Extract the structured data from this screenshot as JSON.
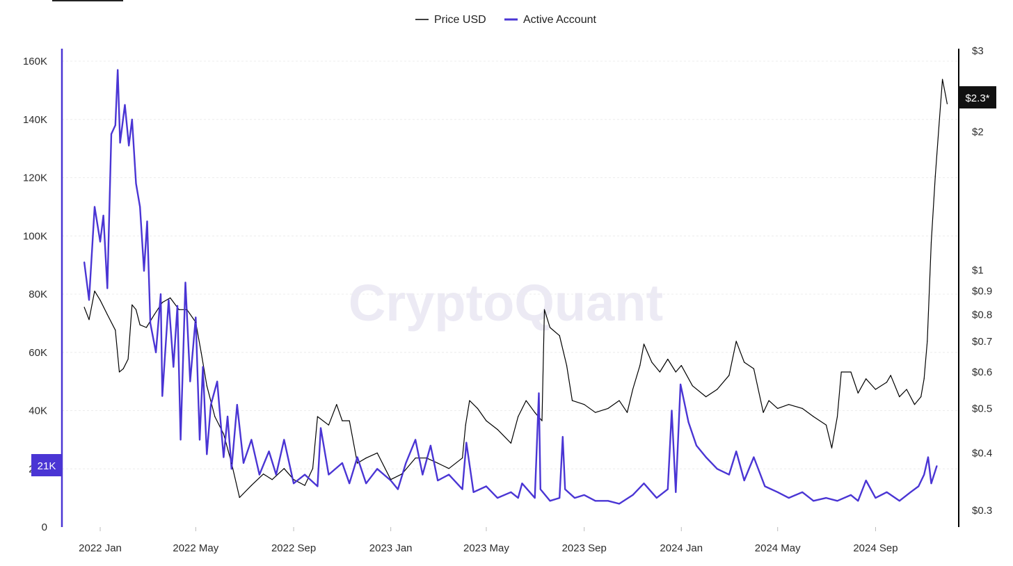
{
  "chart_data": {
    "type": "line",
    "watermark": "CryptoQuant",
    "legend": {
      "placement": "top-center"
    },
    "grid": true,
    "x": {
      "ticks": [
        "2022 Jan",
        "2022 May",
        "2022 Sep",
        "2023 Jan",
        "2023 May",
        "2023 Sep",
        "2024 Jan",
        "2024 May",
        "2024 Sep"
      ],
      "tick_dates": [
        "2022-01-01",
        "2022-05-01",
        "2022-09-01",
        "2023-01-01",
        "2023-05-01",
        "2023-09-01",
        "2024-01-01",
        "2024-05-01",
        "2024-09-01"
      ],
      "range": [
        "2021-12-11",
        "2024-12-04"
      ]
    },
    "y_left": {
      "ticks": [
        "0",
        "20K",
        "40K",
        "60K",
        "80K",
        "100K",
        "120K",
        "140K",
        "160K"
      ],
      "tick_values": [
        0,
        20000,
        40000,
        60000,
        80000,
        100000,
        120000,
        140000,
        160000
      ],
      "range": [
        0,
        160000
      ],
      "color": "#4a35d4",
      "current_badge": "21K"
    },
    "y_right": {
      "scale": "log",
      "ticks": [
        "$0.3",
        "$0.4",
        "$0.5",
        "$0.6",
        "$0.7",
        "$0.8",
        "$0.9",
        "$1",
        "$2",
        "$3"
      ],
      "tick_values": [
        0.3,
        0.4,
        0.5,
        0.6,
        0.7,
        0.8,
        0.9,
        1,
        2,
        3
      ],
      "range": [
        0.3,
        3
      ],
      "color": "#000000",
      "current_badge": "$2.3*",
      "current_value": 2.3
    },
    "series": [
      {
        "name": "Active Account",
        "axis": "left",
        "color": "#4a35d4",
        "points": [
          [
            "2021-12-12",
            91000
          ],
          [
            "2021-12-18",
            78000
          ],
          [
            "2021-12-25",
            110000
          ],
          [
            "2022-01-01",
            98000
          ],
          [
            "2022-01-05",
            107000
          ],
          [
            "2022-01-10",
            82000
          ],
          [
            "2022-01-15",
            135000
          ],
          [
            "2022-01-20",
            138000
          ],
          [
            "2022-01-23",
            157000
          ],
          [
            "2022-01-26",
            132000
          ],
          [
            "2022-02-01",
            145000
          ],
          [
            "2022-02-06",
            131000
          ],
          [
            "2022-02-10",
            140000
          ],
          [
            "2022-02-15",
            118000
          ],
          [
            "2022-02-20",
            110000
          ],
          [
            "2022-02-25",
            88000
          ],
          [
            "2022-03-01",
            105000
          ],
          [
            "2022-03-05",
            70000
          ],
          [
            "2022-03-12",
            60000
          ],
          [
            "2022-03-18",
            80000
          ],
          [
            "2022-03-20",
            45000
          ],
          [
            "2022-03-28",
            78000
          ],
          [
            "2022-04-03",
            55000
          ],
          [
            "2022-04-08",
            76000
          ],
          [
            "2022-04-12",
            30000
          ],
          [
            "2022-04-18",
            84000
          ],
          [
            "2022-04-24",
            50000
          ],
          [
            "2022-05-01",
            72000
          ],
          [
            "2022-05-06",
            30000
          ],
          [
            "2022-05-10",
            55000
          ],
          [
            "2022-05-15",
            25000
          ],
          [
            "2022-05-20",
            42000
          ],
          [
            "2022-05-28",
            50000
          ],
          [
            "2022-06-05",
            24000
          ],
          [
            "2022-06-10",
            38000
          ],
          [
            "2022-06-15",
            20000
          ],
          [
            "2022-06-22",
            42000
          ],
          [
            "2022-06-30",
            22000
          ],
          [
            "2022-07-10",
            30000
          ],
          [
            "2022-07-20",
            18000
          ],
          [
            "2022-08-01",
            26000
          ],
          [
            "2022-08-10",
            18000
          ],
          [
            "2022-08-20",
            30000
          ],
          [
            "2022-09-01",
            15000
          ],
          [
            "2022-09-15",
            18000
          ],
          [
            "2022-10-01",
            14000
          ],
          [
            "2022-10-05",
            34000
          ],
          [
            "2022-10-15",
            18000
          ],
          [
            "2022-11-01",
            22000
          ],
          [
            "2022-11-10",
            15000
          ],
          [
            "2022-11-20",
            24000
          ],
          [
            "2022-12-01",
            15000
          ],
          [
            "2022-12-15",
            20000
          ],
          [
            "2023-01-01",
            16000
          ],
          [
            "2023-01-10",
            13000
          ],
          [
            "2023-01-20",
            22000
          ],
          [
            "2023-02-01",
            30000
          ],
          [
            "2023-02-10",
            18000
          ],
          [
            "2023-02-20",
            28000
          ],
          [
            "2023-03-01",
            16000
          ],
          [
            "2023-03-15",
            18000
          ],
          [
            "2023-04-01",
            13000
          ],
          [
            "2023-04-06",
            29000
          ],
          [
            "2023-04-15",
            12000
          ],
          [
            "2023-05-01",
            14000
          ],
          [
            "2023-05-15",
            10000
          ],
          [
            "2023-06-01",
            12000
          ],
          [
            "2023-06-10",
            10000
          ],
          [
            "2023-06-15",
            15000
          ],
          [
            "2023-07-01",
            10000
          ],
          [
            "2023-07-06",
            46000
          ],
          [
            "2023-07-08",
            13000
          ],
          [
            "2023-07-20",
            9000
          ],
          [
            "2023-08-01",
            10000
          ],
          [
            "2023-08-05",
            31000
          ],
          [
            "2023-08-08",
            13000
          ],
          [
            "2023-08-20",
            10000
          ],
          [
            "2023-09-01",
            11000
          ],
          [
            "2023-09-15",
            9000
          ],
          [
            "2023-10-01",
            9000
          ],
          [
            "2023-10-15",
            8000
          ],
          [
            "2023-11-01",
            11000
          ],
          [
            "2023-11-15",
            15000
          ],
          [
            "2023-12-01",
            10000
          ],
          [
            "2023-12-15",
            13000
          ],
          [
            "2023-12-20",
            40000
          ],
          [
            "2023-12-25",
            12000
          ],
          [
            "2023-12-31",
            49000
          ],
          [
            "2024-01-10",
            36000
          ],
          [
            "2024-01-20",
            28000
          ],
          [
            "2024-02-01",
            24000
          ],
          [
            "2024-02-15",
            20000
          ],
          [
            "2024-03-01",
            18000
          ],
          [
            "2024-03-10",
            26000
          ],
          [
            "2024-03-20",
            16000
          ],
          [
            "2024-04-01",
            24000
          ],
          [
            "2024-04-15",
            14000
          ],
          [
            "2024-05-01",
            12000
          ],
          [
            "2024-05-15",
            10000
          ],
          [
            "2024-06-01",
            12000
          ],
          [
            "2024-06-15",
            9000
          ],
          [
            "2024-07-01",
            10000
          ],
          [
            "2024-07-15",
            9000
          ],
          [
            "2024-08-01",
            11000
          ],
          [
            "2024-08-10",
            9000
          ],
          [
            "2024-08-20",
            16000
          ],
          [
            "2024-09-01",
            10000
          ],
          [
            "2024-09-15",
            12000
          ],
          [
            "2024-10-01",
            9000
          ],
          [
            "2024-10-15",
            12000
          ],
          [
            "2024-10-25",
            14000
          ],
          [
            "2024-11-01",
            18000
          ],
          [
            "2024-11-06",
            24000
          ],
          [
            "2024-11-10",
            15000
          ],
          [
            "2024-11-17",
            21000
          ]
        ]
      },
      {
        "name": "Price USD",
        "axis": "right",
        "color": "#000000",
        "points": [
          [
            "2021-12-12",
            0.83
          ],
          [
            "2021-12-18",
            0.78
          ],
          [
            "2021-12-25",
            0.9
          ],
          [
            "2022-01-01",
            0.86
          ],
          [
            "2022-01-10",
            0.8
          ],
          [
            "2022-01-20",
            0.74
          ],
          [
            "2022-01-25",
            0.6
          ],
          [
            "2022-01-30",
            0.61
          ],
          [
            "2022-02-05",
            0.64
          ],
          [
            "2022-02-10",
            0.84
          ],
          [
            "2022-02-15",
            0.82
          ],
          [
            "2022-02-20",
            0.76
          ],
          [
            "2022-02-28",
            0.75
          ],
          [
            "2022-03-10",
            0.8
          ],
          [
            "2022-03-20",
            0.85
          ],
          [
            "2022-03-30",
            0.87
          ],
          [
            "2022-04-10",
            0.82
          ],
          [
            "2022-04-20",
            0.82
          ],
          [
            "2022-05-01",
            0.77
          ],
          [
            "2022-05-08",
            0.66
          ],
          [
            "2022-05-15",
            0.56
          ],
          [
            "2022-05-25",
            0.48
          ],
          [
            "2022-06-05",
            0.44
          ],
          [
            "2022-06-15",
            0.38
          ],
          [
            "2022-06-25",
            0.32
          ],
          [
            "2022-07-10",
            0.34
          ],
          [
            "2022-07-25",
            0.36
          ],
          [
            "2022-08-05",
            0.35
          ],
          [
            "2022-08-20",
            0.37
          ],
          [
            "2022-09-01",
            0.35
          ],
          [
            "2022-09-15",
            0.34
          ],
          [
            "2022-09-25",
            0.37
          ],
          [
            "2022-10-01",
            0.48
          ],
          [
            "2022-10-15",
            0.46
          ],
          [
            "2022-10-25",
            0.51
          ],
          [
            "2022-11-01",
            0.47
          ],
          [
            "2022-11-10",
            0.47
          ],
          [
            "2022-11-20",
            0.38
          ],
          [
            "2022-12-01",
            0.39
          ],
          [
            "2022-12-15",
            0.4
          ],
          [
            "2023-01-01",
            0.35
          ],
          [
            "2023-01-15",
            0.36
          ],
          [
            "2023-02-01",
            0.39
          ],
          [
            "2023-02-15",
            0.39
          ],
          [
            "2023-03-01",
            0.38
          ],
          [
            "2023-03-15",
            0.37
          ],
          [
            "2023-04-01",
            0.39
          ],
          [
            "2023-04-05",
            0.46
          ],
          [
            "2023-04-10",
            0.52
          ],
          [
            "2023-04-20",
            0.5
          ],
          [
            "2023-05-01",
            0.47
          ],
          [
            "2023-05-15",
            0.45
          ],
          [
            "2023-06-01",
            0.42
          ],
          [
            "2023-06-10",
            0.48
          ],
          [
            "2023-06-20",
            0.52
          ],
          [
            "2023-07-01",
            0.49
          ],
          [
            "2023-07-10",
            0.47
          ],
          [
            "2023-07-13",
            0.82
          ],
          [
            "2023-07-20",
            0.75
          ],
          [
            "2023-08-01",
            0.72
          ],
          [
            "2023-08-10",
            0.62
          ],
          [
            "2023-08-17",
            0.52
          ],
          [
            "2023-09-01",
            0.51
          ],
          [
            "2023-09-15",
            0.49
          ],
          [
            "2023-10-01",
            0.5
          ],
          [
            "2023-10-15",
            0.52
          ],
          [
            "2023-10-25",
            0.49
          ],
          [
            "2023-11-01",
            0.55
          ],
          [
            "2023-11-10",
            0.62
          ],
          [
            "2023-11-15",
            0.69
          ],
          [
            "2023-11-25",
            0.63
          ],
          [
            "2023-12-05",
            0.6
          ],
          [
            "2023-12-15",
            0.64
          ],
          [
            "2023-12-25",
            0.6
          ],
          [
            "2024-01-01",
            0.62
          ],
          [
            "2024-01-15",
            0.56
          ],
          [
            "2024-02-01",
            0.53
          ],
          [
            "2024-02-15",
            0.55
          ],
          [
            "2024-03-01",
            0.59
          ],
          [
            "2024-03-10",
            0.7
          ],
          [
            "2024-03-20",
            0.63
          ],
          [
            "2024-04-01",
            0.61
          ],
          [
            "2024-04-13",
            0.49
          ],
          [
            "2024-04-20",
            0.52
          ],
          [
            "2024-05-01",
            0.5
          ],
          [
            "2024-05-15",
            0.51
          ],
          [
            "2024-06-01",
            0.5
          ],
          [
            "2024-06-15",
            0.48
          ],
          [
            "2024-07-01",
            0.46
          ],
          [
            "2024-07-08",
            0.41
          ],
          [
            "2024-07-15",
            0.48
          ],
          [
            "2024-07-20",
            0.6
          ],
          [
            "2024-08-01",
            0.6
          ],
          [
            "2024-08-10",
            0.54
          ],
          [
            "2024-08-20",
            0.58
          ],
          [
            "2024-09-01",
            0.55
          ],
          [
            "2024-09-15",
            0.57
          ],
          [
            "2024-09-20",
            0.59
          ],
          [
            "2024-10-01",
            0.53
          ],
          [
            "2024-10-10",
            0.55
          ],
          [
            "2024-10-20",
            0.51
          ],
          [
            "2024-10-28",
            0.53
          ],
          [
            "2024-11-01",
            0.58
          ],
          [
            "2024-11-05",
            0.7
          ],
          [
            "2024-11-10",
            1.15
          ],
          [
            "2024-11-15",
            1.6
          ],
          [
            "2024-11-20",
            2.1
          ],
          [
            "2024-11-24",
            2.6
          ],
          [
            "2024-11-28",
            2.4
          ],
          [
            "2024-11-30",
            2.3
          ]
        ]
      }
    ]
  }
}
